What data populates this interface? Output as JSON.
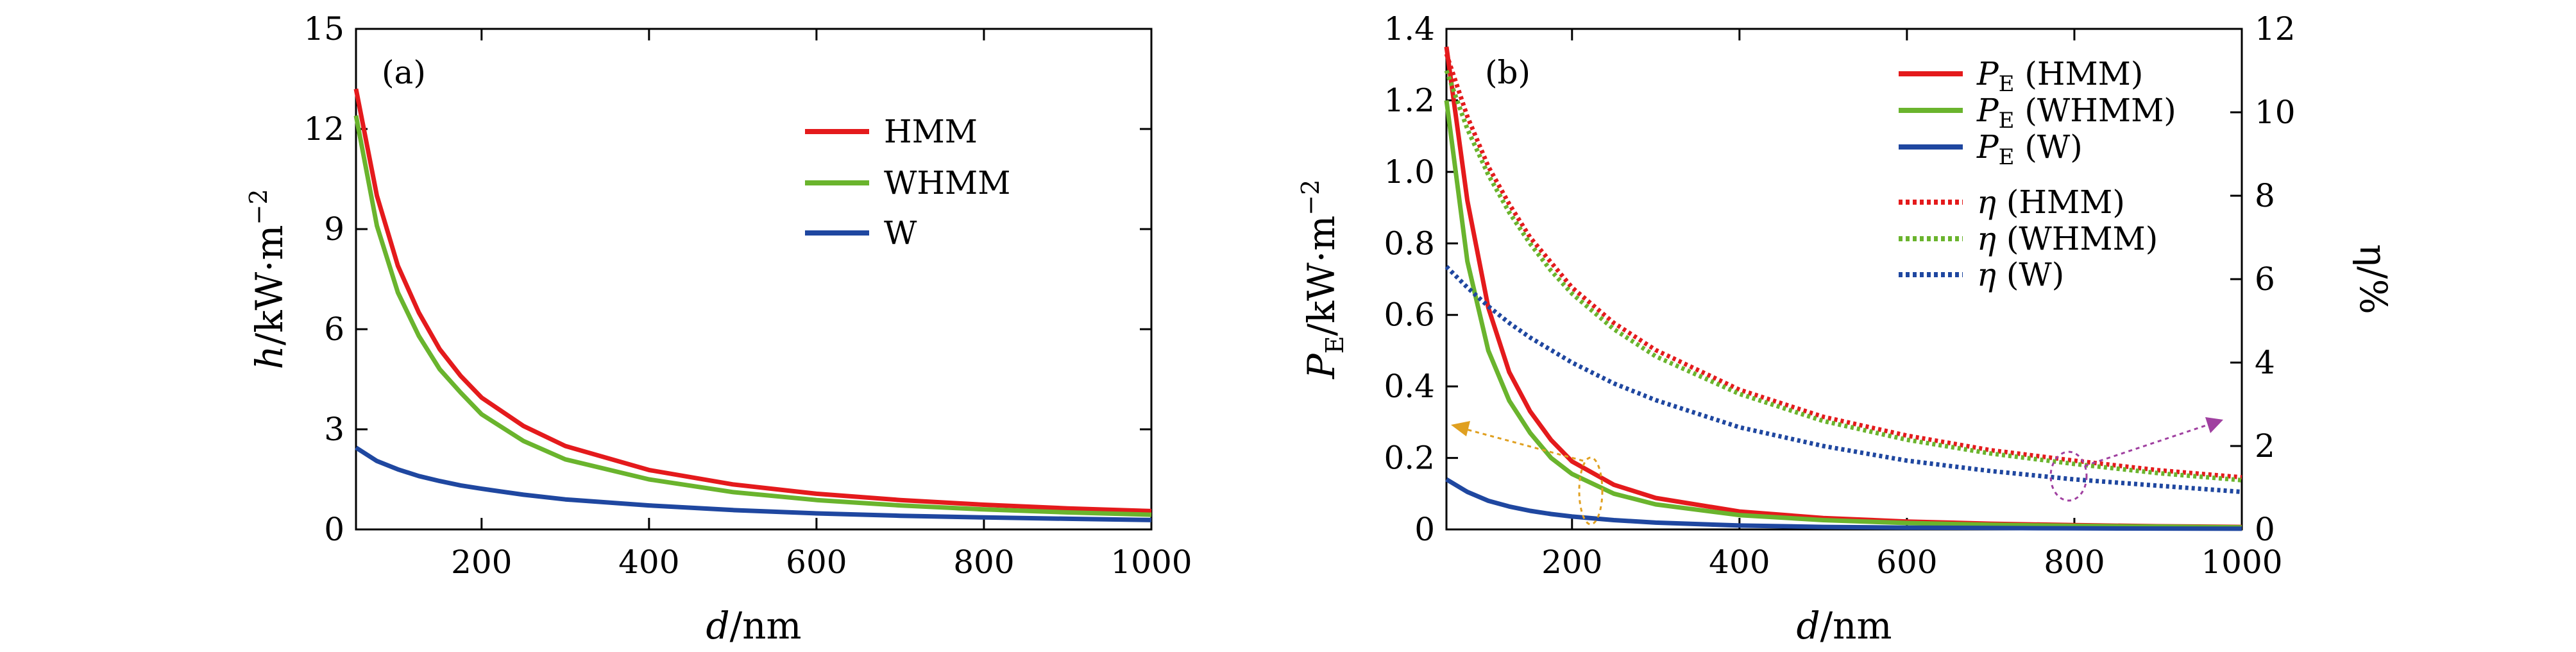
{
  "chart_data": [
    {
      "type": "line",
      "panel_label": "(a)",
      "xlabel": "d/nm",
      "xlabel_var": "d",
      "xlabel_unit": "/nm",
      "ylabel": "h/kW·m⁻²",
      "ylabel_var": "h",
      "ylabel_unit": "/kW·m",
      "ylabel_exp": "−2",
      "xlim": [
        50,
        1000
      ],
      "ylim": [
        0,
        15
      ],
      "xticks": [
        200,
        400,
        600,
        800,
        1000
      ],
      "yticks": [
        0,
        3,
        6,
        9,
        12,
        15
      ],
      "legend_position": "top-right",
      "grid": false,
      "x": [
        50,
        75,
        100,
        125,
        150,
        175,
        200,
        250,
        300,
        400,
        500,
        600,
        700,
        800,
        900,
        1000
      ],
      "series": [
        {
          "name": "HMM",
          "color": "#e41a1c",
          "style": "solid",
          "values": [
            13.2,
            10.0,
            7.9,
            6.5,
            5.4,
            4.6,
            3.95,
            3.1,
            2.5,
            1.78,
            1.35,
            1.07,
            0.88,
            0.74,
            0.63,
            0.55
          ]
        },
        {
          "name": "WHMM",
          "color": "#6ab42d",
          "style": "solid",
          "values": [
            12.4,
            9.1,
            7.1,
            5.8,
            4.8,
            4.1,
            3.45,
            2.65,
            2.1,
            1.5,
            1.12,
            0.88,
            0.72,
            0.6,
            0.51,
            0.44
          ]
        },
        {
          "name": "W",
          "color": "#1f47a0",
          "style": "solid",
          "values": [
            2.45,
            2.05,
            1.8,
            1.6,
            1.45,
            1.32,
            1.22,
            1.04,
            0.9,
            0.72,
            0.58,
            0.48,
            0.41,
            0.36,
            0.32,
            0.28
          ]
        }
      ]
    },
    {
      "type": "line",
      "panel_label": "(b)",
      "xlabel": "d/nm",
      "xlabel_var": "d",
      "xlabel_unit": "/nm",
      "ylabel": "PE/kW·m⁻²",
      "ylabel_var": "P",
      "ylabel_sub": "E",
      "ylabel_unit": "/kW·m",
      "ylabel_exp": "−2",
      "y2label": "η/%",
      "xlim": [
        50,
        1000
      ],
      "ylim": [
        0,
        1.4
      ],
      "y2lim": [
        0,
        12
      ],
      "xticks": [
        200,
        400,
        600,
        800,
        1000
      ],
      "yticks": [
        "0",
        "0.2",
        "0.4",
        "0.6",
        "0.8",
        "1.0",
        "1.2",
        "1.4"
      ],
      "y2ticks": [
        0,
        2,
        4,
        6,
        8,
        10,
        12
      ],
      "legend_position": "top-right",
      "grid": false,
      "x": [
        50,
        75,
        100,
        125,
        150,
        175,
        200,
        250,
        300,
        400,
        500,
        600,
        700,
        800,
        900,
        1000
      ],
      "series": [
        {
          "name": "PE (HMM)",
          "name_var": "P",
          "name_sub": "E",
          "name_rest": " (HMM)",
          "axis": "left",
          "color": "#e41a1c",
          "style": "solid",
          "values": [
            1.35,
            0.92,
            0.62,
            0.44,
            0.33,
            0.25,
            0.19,
            0.125,
            0.088,
            0.05,
            0.032,
            0.022,
            0.016,
            0.012,
            0.009,
            0.007
          ]
        },
        {
          "name": "PE (WHMM)",
          "name_var": "P",
          "name_sub": "E",
          "name_rest": " (WHMM)",
          "axis": "left",
          "color": "#6ab42d",
          "style": "solid",
          "values": [
            1.2,
            0.75,
            0.5,
            0.36,
            0.27,
            0.2,
            0.155,
            0.1,
            0.07,
            0.04,
            0.026,
            0.018,
            0.013,
            0.01,
            0.008,
            0.006
          ]
        },
        {
          "name": "PE (W)",
          "name_var": "P",
          "name_sub": "E",
          "name_rest": " (W)",
          "axis": "left",
          "color": "#1f47a0",
          "style": "solid",
          "values": [
            0.14,
            0.105,
            0.08,
            0.064,
            0.052,
            0.043,
            0.036,
            0.026,
            0.019,
            0.011,
            0.007,
            0.005,
            0.004,
            0.003,
            0.0025,
            0.002
          ]
        },
        {
          "name": "η (HMM)",
          "name_var": "η",
          "name_rest": " (HMM)",
          "axis": "right",
          "color": "#e41a1c",
          "style": "dotted",
          "values": [
            11.4,
            9.9,
            8.7,
            7.8,
            7.0,
            6.4,
            5.8,
            4.95,
            4.3,
            3.35,
            2.7,
            2.25,
            1.9,
            1.65,
            1.42,
            1.25
          ]
        },
        {
          "name": "η (WHMM)",
          "name_var": "η",
          "name_rest": " (WHMM)",
          "axis": "right",
          "color": "#6ab42d",
          "style": "dotted",
          "values": [
            11.0,
            9.6,
            8.5,
            7.6,
            6.85,
            6.2,
            5.65,
            4.8,
            4.15,
            3.25,
            2.6,
            2.15,
            1.82,
            1.57,
            1.35,
            1.18
          ]
        },
        {
          "name": "η (W)",
          "name_var": "η",
          "name_rest": " (W)",
          "axis": "right",
          "color": "#1f47a0",
          "style": "dotted",
          "values": [
            6.3,
            5.8,
            5.35,
            4.95,
            4.6,
            4.3,
            4.0,
            3.5,
            3.1,
            2.45,
            2.0,
            1.65,
            1.4,
            1.2,
            1.05,
            0.9
          ]
        }
      ]
    }
  ]
}
